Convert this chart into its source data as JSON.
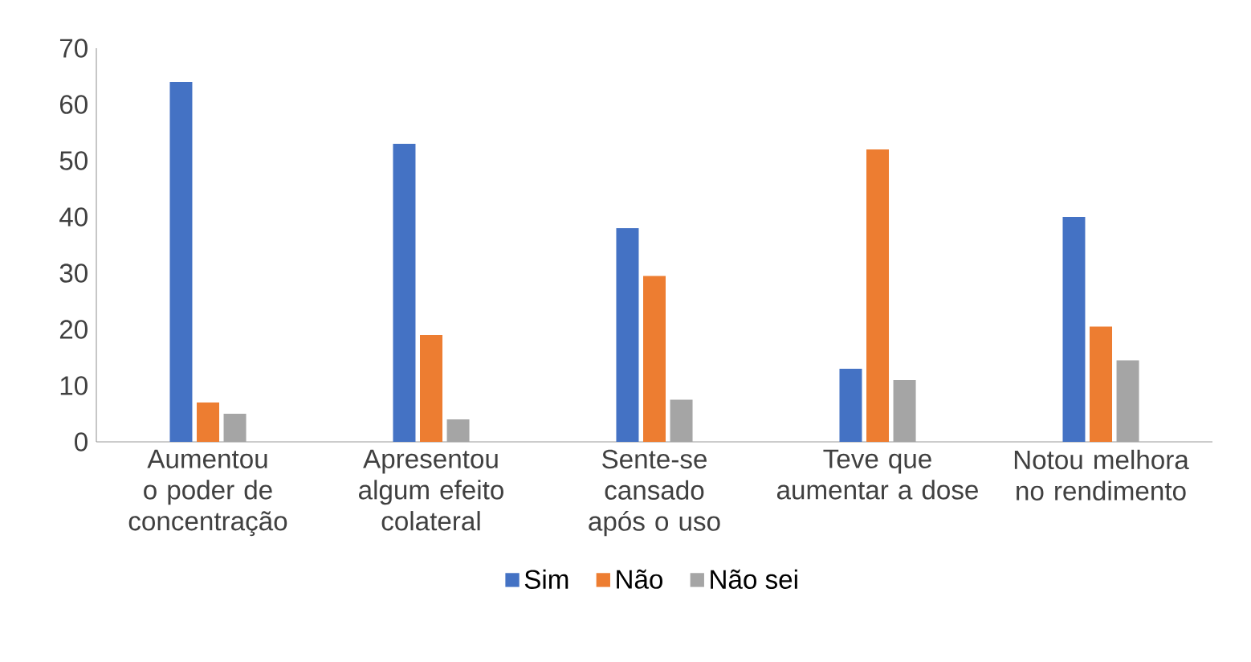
{
  "chart_data": {
    "type": "bar",
    "categories": [
      "Aumentou o poder de concentração",
      "Apresentou algum efeito colateral",
      "Sente-se cansado após o uso",
      "Teve que aumentar a dose",
      "Notou melhora no rendimento"
    ],
    "series": [
      {
        "name": "Sim",
        "color": "#4472c4",
        "values": [
          64,
          53,
          38,
          13,
          40
        ]
      },
      {
        "name": "Não",
        "color": "#ed7d31",
        "values": [
          7,
          19,
          29.5,
          52,
          20.5
        ]
      },
      {
        "name": "Não sei",
        "color": "#a5a5a5",
        "values": [
          5,
          4,
          7.5,
          11,
          14.5
        ]
      }
    ],
    "ylim": [
      0,
      70
    ],
    "yticks": [
      0,
      10,
      20,
      30,
      40,
      50,
      60,
      70
    ],
    "grid": false,
    "legend": "bottom"
  }
}
